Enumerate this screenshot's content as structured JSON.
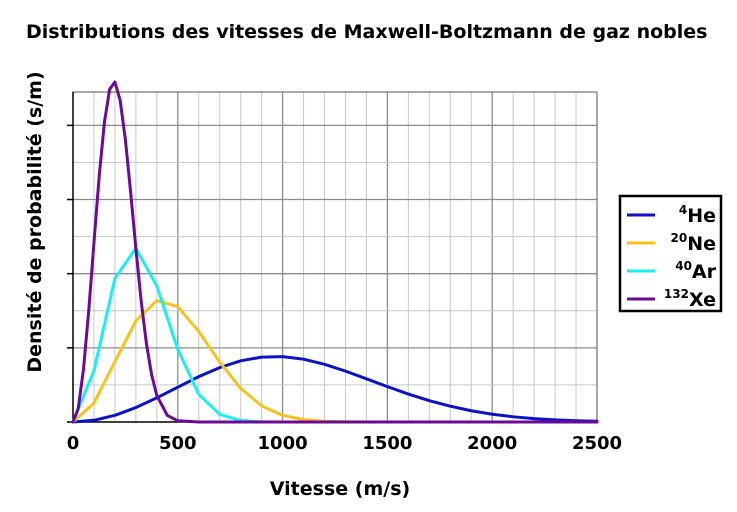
{
  "chart_data": {
    "type": "line",
    "title": "Distributions des vitesses de Maxwell-Boltzmann de gaz nobles",
    "xlabel": "Vitesse (m/s)",
    "ylabel": "Densité de probabilité (s/m)",
    "xlim": [
      0,
      2500
    ],
    "ylim": [
      0,
      0.00445
    ],
    "x_ticks": [
      0,
      500,
      1000,
      1500,
      2000,
      2500
    ],
    "x_tick_labels": [
      "0",
      "500",
      "1000",
      "1500",
      "2000",
      "2500"
    ],
    "y_ticks": [
      0,
      0.001,
      0.002,
      0.003,
      0.004
    ],
    "grid": true,
    "legend_position": "right",
    "series": [
      {
        "name": "He",
        "mass_number": "4",
        "color": "#0a12c8",
        "x": [
          0,
          100,
          200,
          300,
          400,
          500,
          600,
          700,
          800,
          900,
          1000,
          1100,
          1200,
          1300,
          1400,
          1500,
          1600,
          1700,
          1800,
          1900,
          2000,
          2100,
          2200,
          2300,
          2400,
          2500
        ],
        "y": [
          0,
          2.3e-05,
          9e-05,
          0.000195,
          0.000326,
          0.00047,
          0.000612,
          0.000734,
          0.000825,
          0.000875,
          0.000881,
          0.000847,
          0.000778,
          0.000686,
          0.000582,
          0.000477,
          0.000377,
          0.000288,
          0.000213,
          0.000152,
          0.000105,
          7e-05,
          4.5e-05,
          2.8e-05,
          1.7e-05,
          1e-05
        ]
      },
      {
        "name": "Ne",
        "mass_number": "20",
        "color": "#f8c21a",
        "x": [
          0,
          100,
          200,
          300,
          400,
          500,
          600,
          700,
          800,
          900,
          1000,
          1100,
          1200,
          1300,
          1400,
          1500
        ],
        "y": [
          0,
          0.000256,
          0.000813,
          0.001364,
          0.001637,
          0.001555,
          0.00122,
          0.000807,
          0.000454,
          0.000218,
          9e-05,
          3.2e-05,
          1e-05,
          3e-06,
          1e-06,
          0
        ]
      },
      {
        "name": "Ar",
        "mass_number": "40",
        "color": "#1aeef2",
        "x": [
          0,
          100,
          200,
          300,
          400,
          500,
          600,
          700,
          800,
          900,
          1000,
          1100
        ],
        "y": [
          0,
          0.000693,
          0.001936,
          0.002344,
          0.001832,
          0.000979,
          0.000373,
          0.000102,
          2e-05,
          3e-06,
          0,
          0
        ]
      },
      {
        "name": "Xe",
        "mass_number": "132",
        "color": "#6a0a96",
        "x": [
          0,
          25,
          50,
          75,
          100,
          125,
          150,
          175,
          200,
          225,
          250,
          275,
          300,
          325,
          350,
          375,
          400,
          450,
          500,
          600,
          700,
          1000,
          2500
        ],
        "y": [
          0,
          0.000184,
          0.000711,
          0.001498,
          0.002418,
          0.003317,
          0.004045,
          0.004488,
          0.004585,
          0.004337,
          0.003806,
          0.003098,
          0.002339,
          0.001637,
          0.001062,
          0.000639,
          0.000356,
          8.8e-05,
          1.6e-05,
          0,
          0,
          0,
          0
        ]
      }
    ]
  }
}
